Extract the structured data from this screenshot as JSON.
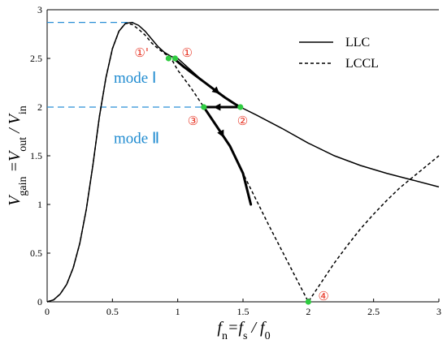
{
  "chart_data": {
    "type": "line",
    "xlim": [
      0,
      3
    ],
    "ylim": [
      0,
      3
    ],
    "grid": false,
    "legend_position": "top-right",
    "x_ticks": [
      "0",
      "0.5",
      "1",
      "1.5",
      "2",
      "2.5",
      "3"
    ],
    "y_ticks": [
      "0",
      "0.5",
      "1",
      "1.5",
      "2",
      "2.5",
      "3"
    ],
    "xlabel": {
      "main": "f",
      "sub": "n",
      "eq": "=f",
      "sub2": "s",
      "slash": " / f",
      "sub3": "0"
    },
    "ylabel": {
      "main": "V",
      "sub": "gain",
      "eq": " =V",
      "sub2": "out",
      "slash": " / V",
      "sub3": "in"
    },
    "series": [
      {
        "name": "LLC",
        "style": "solid",
        "x": [
          0.0,
          0.05,
          0.1,
          0.15,
          0.2,
          0.25,
          0.3,
          0.35,
          0.4,
          0.45,
          0.5,
          0.55,
          0.6,
          0.65,
          0.7,
          0.75,
          0.8,
          0.85,
          0.9,
          0.95,
          1.0,
          1.1,
          1.2,
          1.3,
          1.4,
          1.48,
          1.6,
          1.8,
          2.0,
          2.2,
          2.4,
          2.6,
          2.8,
          3.0
        ],
        "y": [
          0.0,
          0.02,
          0.08,
          0.18,
          0.35,
          0.6,
          0.95,
          1.4,
          1.9,
          2.3,
          2.6,
          2.78,
          2.86,
          2.87,
          2.84,
          2.78,
          2.7,
          2.62,
          2.56,
          2.52,
          2.5,
          2.38,
          2.26,
          2.15,
          2.06,
          2.0,
          1.92,
          1.78,
          1.63,
          1.5,
          1.4,
          1.32,
          1.25,
          1.18
        ]
      },
      {
        "name": "LCCL",
        "style": "dashed",
        "x": [
          0.0,
          0.05,
          0.1,
          0.15,
          0.2,
          0.25,
          0.3,
          0.35,
          0.4,
          0.45,
          0.5,
          0.55,
          0.6,
          0.65,
          0.7,
          0.75,
          0.8,
          0.85,
          0.9,
          0.95,
          1.0,
          1.1,
          1.2,
          1.3,
          1.4,
          1.5,
          1.6,
          1.7,
          1.8,
          1.9,
          2.0,
          2.1,
          2.2,
          2.3,
          2.4,
          2.5,
          2.6,
          2.7,
          2.8,
          2.9,
          3.0
        ],
        "y": [
          0.0,
          0.02,
          0.08,
          0.18,
          0.35,
          0.6,
          0.95,
          1.4,
          1.9,
          2.3,
          2.6,
          2.78,
          2.86,
          2.85,
          2.8,
          2.74,
          2.66,
          2.6,
          2.55,
          2.5,
          2.38,
          2.2,
          2.0,
          1.8,
          1.6,
          1.32,
          1.05,
          0.78,
          0.52,
          0.26,
          0.0,
          0.2,
          0.4,
          0.58,
          0.75,
          0.9,
          1.04,
          1.17,
          1.28,
          1.39,
          1.5
        ]
      }
    ],
    "trajectory": {
      "segments": [
        {
          "x": [
            0.97,
            1.04,
            1.12,
            1.2,
            1.28,
            1.36,
            1.44,
            1.48
          ],
          "y": [
            2.5,
            2.42,
            2.34,
            2.26,
            2.18,
            2.1,
            2.03,
            2.0
          ]
        },
        {
          "x": [
            1.48,
            1.2
          ],
          "y": [
            2.0,
            2.0
          ]
        },
        {
          "x": [
            1.2,
            1.3,
            1.4,
            1.5,
            1.56
          ],
          "y": [
            2.0,
            1.8,
            1.6,
            1.32,
            1.0
          ]
        }
      ],
      "arrows": [
        {
          "x": 1.3,
          "y": 2.16,
          "dx": 1,
          "dy": -0.9
        },
        {
          "x": 1.3,
          "y": 2.0,
          "dx": -1,
          "dy": 0
        },
        {
          "x": 1.34,
          "y": 1.72,
          "dx": 0.5,
          "dy": -1
        }
      ]
    },
    "points": [
      {
        "x": 0.93,
        "y": 2.5,
        "label": "①'"
      },
      {
        "x": 0.98,
        "y": 2.5,
        "label": "①"
      },
      {
        "x": 1.48,
        "y": 2.0,
        "label": "②"
      },
      {
        "x": 1.2,
        "y": 2.0,
        "label": "③"
      },
      {
        "x": 2.0,
        "y": 0.0,
        "label": "④"
      }
    ],
    "reference_lines": [
      {
        "y": 2.87,
        "x_to": 0.66
      },
      {
        "y": 2.0,
        "x_to": 1.2
      }
    ],
    "annotations": [
      {
        "text": "mode Ⅰ",
        "x": 0.51,
        "y": 2.25
      },
      {
        "text": "mode Ⅱ",
        "x": 0.51,
        "y": 1.63
      }
    ],
    "colors": {
      "curve": "#000000",
      "point": "#2ecc40",
      "reference_line": "#2b8fd6",
      "mode_text": "#1f8bd0",
      "marker_label": "#e83a2a"
    }
  }
}
